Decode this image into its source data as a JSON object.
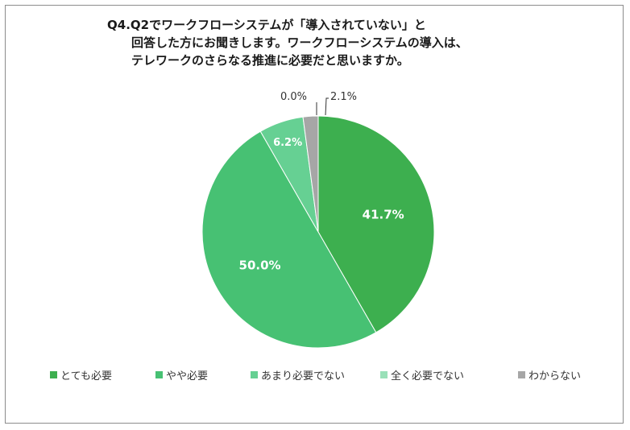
{
  "chart_data": {
    "type": "pie",
    "title_lines": [
      "Q4.Q2でワークフローシステムが「導入されていない」と",
      "回答した方にお聞きします。ワークフローシステムの導入は、",
      "テレワークのさらなる推進に必要だと思いますか。"
    ],
    "categories": [
      "とても必要",
      "やや必要",
      "あまり必要でない",
      "全く必要でない",
      "わからない"
    ],
    "values": [
      41.7,
      50.0,
      6.2,
      0.0,
      2.1
    ],
    "labels": [
      "41.7%",
      "50.0%",
      "6.2%",
      "0.0%",
      "2.1%"
    ],
    "colors": [
      "#3daf4f",
      "#47c173",
      "#66d093",
      "#99e0b8",
      "#a6a6a6"
    ],
    "legend_position": "bottom"
  }
}
